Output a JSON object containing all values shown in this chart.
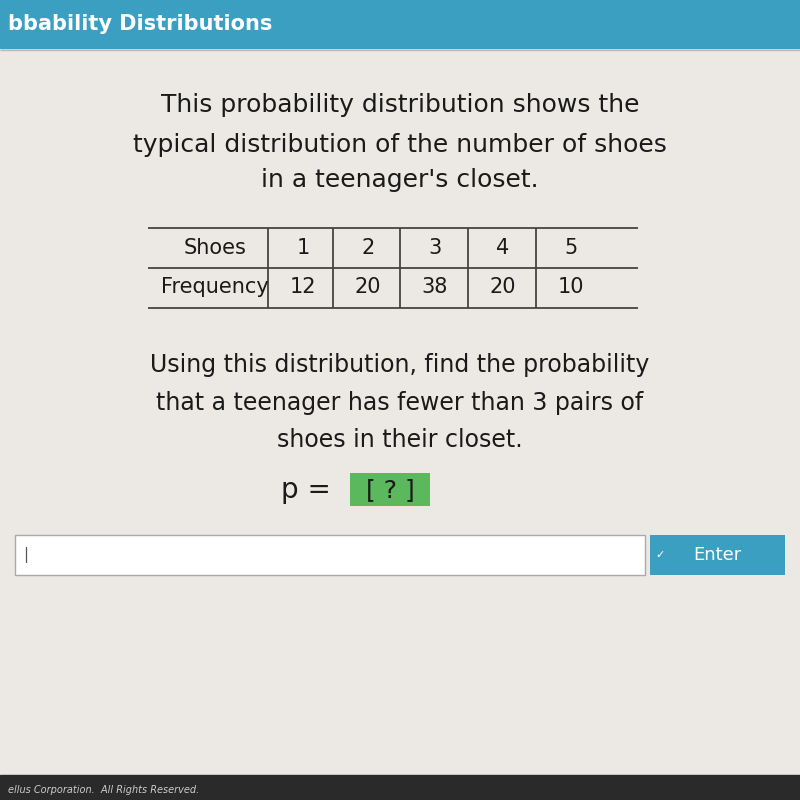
{
  "header_text": "bbability Distributions",
  "header_bg": "#3a9fc0",
  "header_stripe_color": "#c8c8c8",
  "bg_color": "#ece9e4",
  "title_line1": "This probability distribution shows the",
  "title_line2": "typical distribution of the number of shoes",
  "title_line3": "in a teenager's closet.",
  "table_col_header": [
    "Shoes",
    "1",
    "2",
    "3",
    "4",
    "5"
  ],
  "table_col_freq": [
    "Frequency",
    "12",
    "20",
    "38",
    "20",
    "10"
  ],
  "question_line1": "Using this distribution, find the probability",
  "question_line2": "that a teenager has fewer than 3 pairs of",
  "question_line3": "shoes in their closet.",
  "bracket_bg": "#5cb85c",
  "input_box_color": "#ffffff",
  "enter_button_bg": "#3a9fc0",
  "enter_button_text": "Enter",
  "footer_text": "ellus Corporation.  All Rights Reserved.",
  "footer_bg": "#2a2a2a",
  "title_fontsize": 18,
  "question_fontsize": 17,
  "table_fontsize": 15,
  "header_fontsize": 15
}
